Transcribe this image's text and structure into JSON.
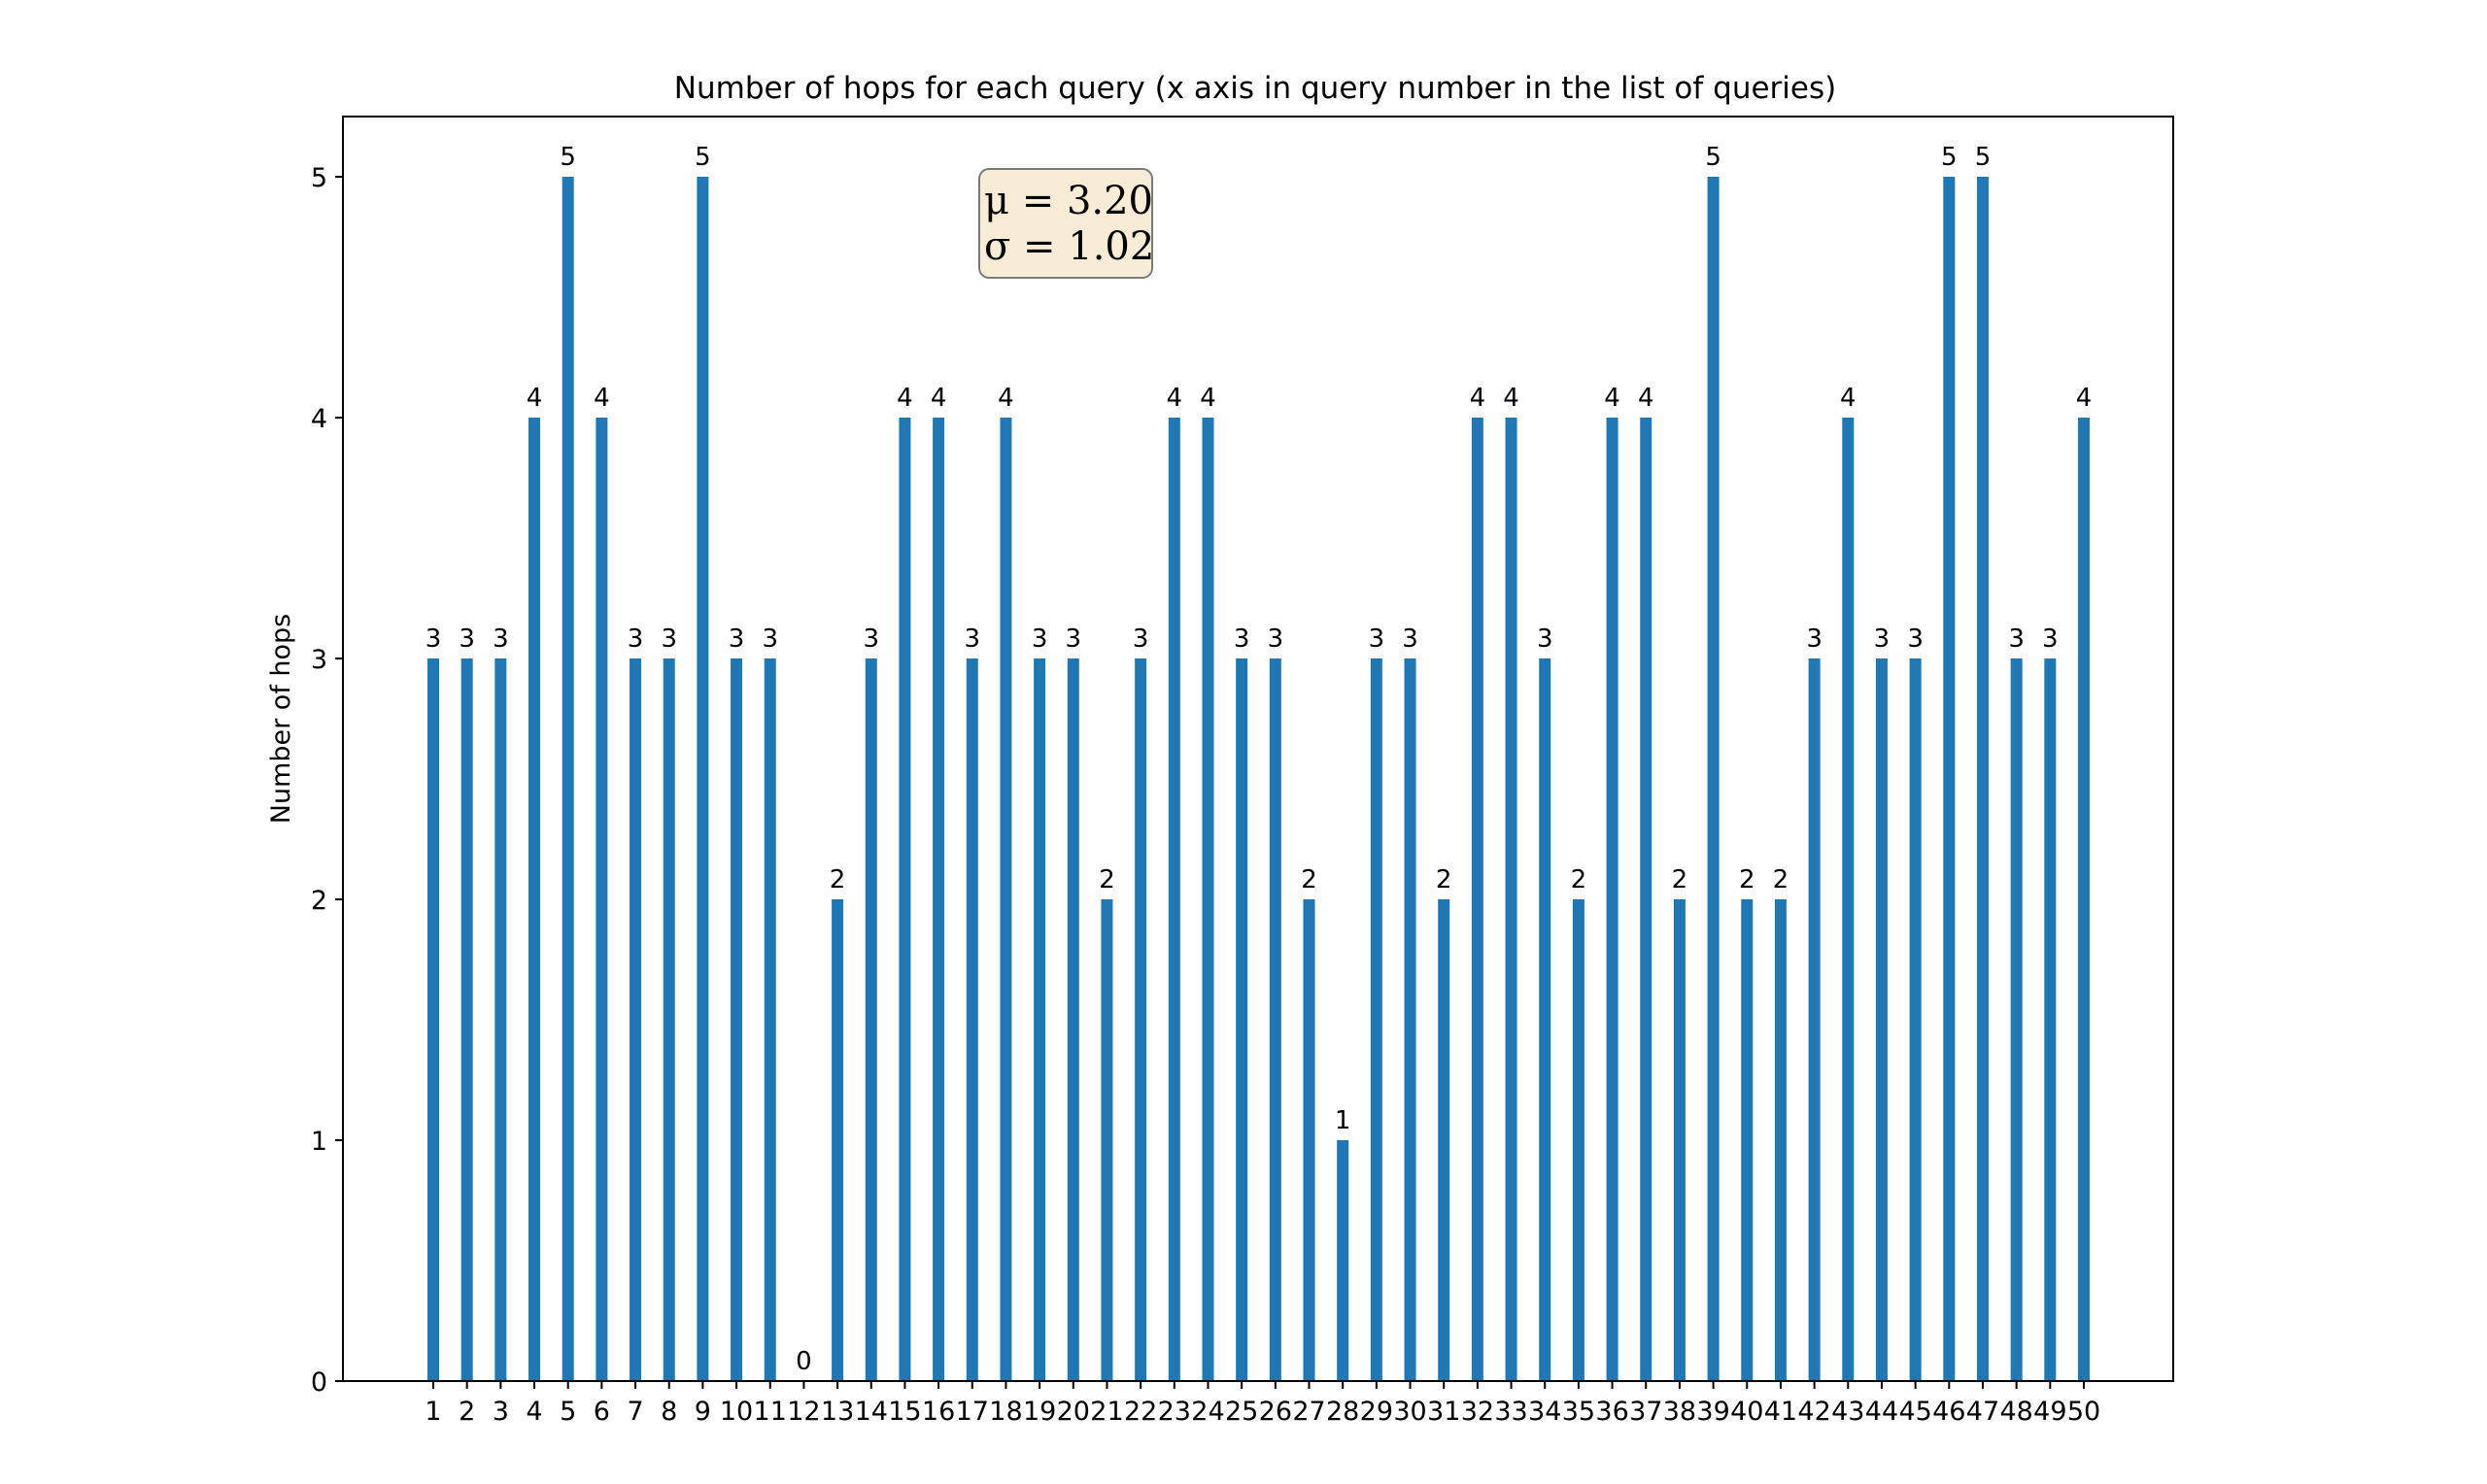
{
  "chart_data": {
    "type": "bar",
    "title": "Number of hops for each query (x axis in query number in the list of queries)",
    "xlabel": "",
    "ylabel": "Number of hops",
    "categories": [
      "1",
      "2",
      "3",
      "4",
      "5",
      "6",
      "7",
      "8",
      "9",
      "10",
      "11",
      "12",
      "13",
      "14",
      "15",
      "16",
      "17",
      "18",
      "19",
      "20",
      "21",
      "22",
      "23",
      "24",
      "25",
      "26",
      "27",
      "28",
      "29",
      "30",
      "31",
      "32",
      "33",
      "34",
      "35",
      "36",
      "37",
      "38",
      "39",
      "40",
      "41",
      "42",
      "43",
      "44",
      "45",
      "46",
      "47",
      "48",
      "49",
      "50"
    ],
    "values": [
      3,
      3,
      3,
      4,
      5,
      4,
      3,
      3,
      5,
      3,
      3,
      0,
      2,
      3,
      4,
      4,
      3,
      4,
      3,
      3,
      2,
      3,
      4,
      4,
      3,
      3,
      2,
      1,
      3,
      3,
      2,
      4,
      4,
      3,
      2,
      4,
      4,
      2,
      5,
      2,
      2,
      3,
      4,
      3,
      3,
      5,
      5,
      3,
      3,
      4
    ],
    "ylim": [
      0,
      5.25
    ],
    "yticks": [
      0,
      1,
      2,
      3,
      4,
      5
    ],
    "grid": false,
    "bar_color": "#1f77b4",
    "annotation": {
      "mu_line": "μ = 3.20",
      "sigma_line": "σ = 1.02",
      "box_fill": "#f8ecd6",
      "box_edge": "#7a7a7a"
    }
  }
}
